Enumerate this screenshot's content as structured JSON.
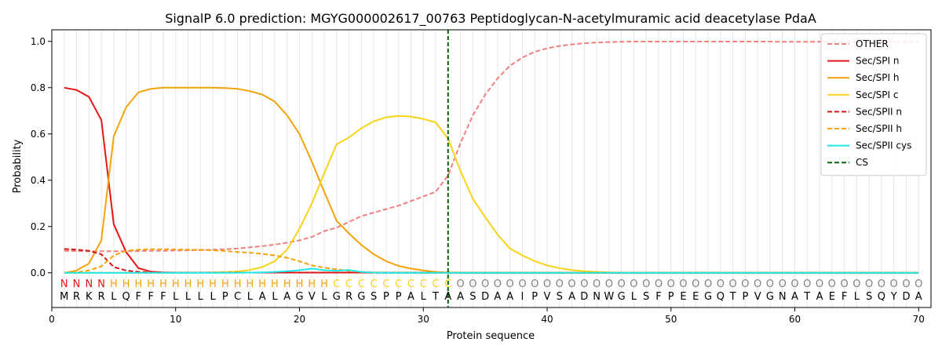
{
  "chart_data": {
    "type": "line",
    "title": "SignalP 6.0 prediction: MGYG000002617_00763 Peptidoglycan-N-acetylmuramic acid deacetylase PdaA",
    "xlabel": "Protein sequence",
    "ylabel": "Probability",
    "xlim": [
      0,
      71
    ],
    "ylim": [
      -0.15,
      1.05
    ],
    "xticks": [
      0,
      10,
      20,
      30,
      40,
      50,
      60,
      70
    ],
    "yticks": [
      0.0,
      0.2,
      0.4,
      0.6,
      0.8,
      1.0
    ],
    "sequence": [
      "M",
      "R",
      "K",
      "R",
      "L",
      "Q",
      "F",
      "F",
      "F",
      "L",
      "L",
      "L",
      "L",
      "P",
      "C",
      "L",
      "A",
      "L",
      "A",
      "G",
      "V",
      "L",
      "G",
      "R",
      "G",
      "S",
      "P",
      "P",
      "A",
      "L",
      "T",
      "A",
      "A",
      "S",
      "D",
      "A",
      "A",
      "I",
      "P",
      "V",
      "S",
      "A",
      "D",
      "N",
      "W",
      "G",
      "L",
      "S",
      "F",
      "P",
      "E",
      "E",
      "G",
      "Q",
      "T",
      "P",
      "V",
      "G",
      "N",
      "A",
      "T",
      "A",
      "E",
      "F",
      "L",
      "S",
      "Q",
      "Y",
      "D",
      "A"
    ],
    "region_labels": [
      "N",
      "N",
      "N",
      "N",
      "H",
      "H",
      "H",
      "H",
      "H",
      "H",
      "H",
      "H",
      "H",
      "H",
      "H",
      "H",
      "H",
      "H",
      "H",
      "H",
      "H",
      "H",
      "C",
      "C",
      "C",
      "C",
      "C",
      "C",
      "C",
      "C",
      "C",
      "C",
      "O",
      "O",
      "O",
      "O",
      "O",
      "O",
      "O",
      "O",
      "O",
      "O",
      "O",
      "O",
      "O",
      "O",
      "O",
      "O",
      "O",
      "O",
      "O",
      "O",
      "O",
      "O",
      "O",
      "O",
      "O",
      "O",
      "O",
      "O",
      "O",
      "O",
      "O",
      "O",
      "O",
      "O",
      "O",
      "O",
      "O",
      "O"
    ],
    "cleavage_site": 32,
    "legend_position": "top-right",
    "series": [
      {
        "name": "OTHER",
        "color": "#f08080",
        "dash": true,
        "values": [
          0.095,
          0.094,
          0.093,
          0.093,
          0.093,
          0.093,
          0.094,
          0.095,
          0.095,
          0.096,
          0.097,
          0.098,
          0.1,
          0.102,
          0.105,
          0.11,
          0.115,
          0.122,
          0.13,
          0.14,
          0.155,
          0.18,
          0.195,
          0.22,
          0.245,
          0.26,
          0.275,
          0.29,
          0.31,
          0.33,
          0.35,
          0.42,
          0.56,
          0.68,
          0.77,
          0.84,
          0.895,
          0.93,
          0.955,
          0.97,
          0.98,
          0.987,
          0.992,
          0.995,
          0.997,
          0.998,
          0.999,
          0.999,
          0.999,
          0.999,
          0.999,
          0.999,
          0.999,
          0.999,
          0.999,
          0.999,
          0.999,
          0.999,
          0.998,
          0.998,
          0.998,
          0.998,
          0.998,
          0.998,
          0.998,
          0.998,
          0.998,
          0.998,
          0.998,
          0.998
        ]
      },
      {
        "name": "Sec/SPI n",
        "color": "#e81515",
        "dash": false,
        "values": [
          0.8,
          0.79,
          0.76,
          0.66,
          0.21,
          0.09,
          0.02,
          0.005,
          0.002,
          0.001,
          0.001,
          0.001,
          0.001,
          0.001,
          0.001,
          0.001,
          0.001,
          0.001,
          0.001,
          0.001,
          0.001,
          0.001,
          0.001,
          0.001,
          0.001,
          0.001,
          0.001,
          0.001,
          0.001,
          0.001,
          0.001,
          0.001,
          0,
          0,
          0,
          0,
          0,
          0,
          0,
          0,
          0,
          0,
          0,
          0,
          0,
          0,
          0,
          0,
          0,
          0,
          0,
          0,
          0,
          0,
          0,
          0,
          0,
          0,
          0,
          0,
          0,
          0,
          0,
          0,
          0,
          0,
          0,
          0,
          0,
          0
        ]
      },
      {
        "name": "Sec/SPI h",
        "color": "#f5a30a",
        "dash": false,
        "values": [
          0.0,
          0.01,
          0.04,
          0.14,
          0.59,
          0.715,
          0.78,
          0.795,
          0.8,
          0.8,
          0.8,
          0.8,
          0.8,
          0.798,
          0.795,
          0.785,
          0.77,
          0.74,
          0.68,
          0.6,
          0.48,
          0.35,
          0.225,
          0.17,
          0.12,
          0.08,
          0.05,
          0.03,
          0.018,
          0.01,
          0.004,
          0.002,
          0.001,
          0.0,
          0,
          0,
          0,
          0,
          0,
          0,
          0,
          0,
          0,
          0,
          0,
          0,
          0,
          0,
          0,
          0,
          0,
          0,
          0,
          0,
          0,
          0,
          0,
          0,
          0,
          0,
          0,
          0,
          0,
          0,
          0,
          0,
          0,
          0,
          0,
          0
        ]
      },
      {
        "name": "Sec/SPI c",
        "color": "#f7d418",
        "dash": false,
        "values": [
          0,
          0,
          0,
          0,
          0,
          0,
          0,
          0,
          0,
          0,
          0,
          0.001,
          0.002,
          0.003,
          0.006,
          0.012,
          0.025,
          0.05,
          0.1,
          0.19,
          0.3,
          0.43,
          0.555,
          0.585,
          0.625,
          0.655,
          0.672,
          0.678,
          0.675,
          0.665,
          0.65,
          0.58,
          0.44,
          0.32,
          0.24,
          0.165,
          0.105,
          0.075,
          0.05,
          0.032,
          0.02,
          0.012,
          0.007,
          0.004,
          0.002,
          0.001,
          0.001,
          0,
          0,
          0,
          0,
          0,
          0,
          0,
          0,
          0,
          0,
          0,
          0,
          0,
          0,
          0,
          0,
          0,
          0,
          0,
          0,
          0,
          0,
          0
        ]
      },
      {
        "name": "Sec/SPII n",
        "color": "#d41515",
        "dash": true,
        "values": [
          0.103,
          0.1,
          0.095,
          0.08,
          0.025,
          0.01,
          0.004,
          0.002,
          0.001,
          0.001,
          0.001,
          0.001,
          0.001,
          0.001,
          0.001,
          0.001,
          0.001,
          0.001,
          0.001,
          0.001,
          0.001,
          0.001,
          0.001,
          0.001,
          0.001,
          0,
          0,
          0,
          0,
          0,
          0,
          0,
          0,
          0,
          0,
          0,
          0,
          0,
          0,
          0,
          0,
          0,
          0,
          0,
          0,
          0,
          0,
          0,
          0,
          0,
          0,
          0,
          0,
          0,
          0,
          0,
          0,
          0,
          0,
          0,
          0,
          0,
          0,
          0,
          0,
          0,
          0,
          0,
          0,
          0
        ]
      },
      {
        "name": "Sec/SPII h",
        "color": "#f5a30a",
        "dash": true,
        "values": [
          0.0,
          0.002,
          0.01,
          0.028,
          0.075,
          0.095,
          0.1,
          0.102,
          0.102,
          0.101,
          0.1,
          0.099,
          0.097,
          0.094,
          0.09,
          0.087,
          0.082,
          0.075,
          0.065,
          0.05,
          0.032,
          0.022,
          0.015,
          0.008,
          0.004,
          0.002,
          0.001,
          0,
          0,
          0,
          0,
          0,
          0,
          0,
          0,
          0,
          0,
          0,
          0,
          0,
          0,
          0,
          0,
          0,
          0,
          0,
          0,
          0,
          0,
          0,
          0,
          0,
          0,
          0,
          0,
          0,
          0,
          0,
          0,
          0,
          0,
          0,
          0,
          0,
          0,
          0,
          0,
          0,
          0,
          0
        ]
      },
      {
        "name": "Sec/SPII cys",
        "color": "#1ee8e8",
        "dash": false,
        "values": [
          0,
          0,
          0,
          0,
          0,
          0,
          0,
          0,
          0,
          0,
          0,
          0,
          0,
          0,
          0,
          0.001,
          0.002,
          0.004,
          0.007,
          0.011,
          0.018,
          0.011,
          0.009,
          0.012,
          0.004,
          0.001,
          0,
          0,
          0,
          0,
          0,
          0,
          0,
          0,
          0,
          0,
          0,
          0,
          0,
          0,
          0,
          0,
          0,
          0,
          0,
          0,
          0,
          0,
          0,
          0,
          0,
          0,
          0,
          0,
          0,
          0,
          0,
          0,
          0,
          0,
          0,
          0,
          0,
          0,
          0,
          0,
          0,
          0,
          0,
          0
        ]
      },
      {
        "name": "CS",
        "color": "#006400",
        "dash": true,
        "vertical": true,
        "values": []
      }
    ]
  }
}
